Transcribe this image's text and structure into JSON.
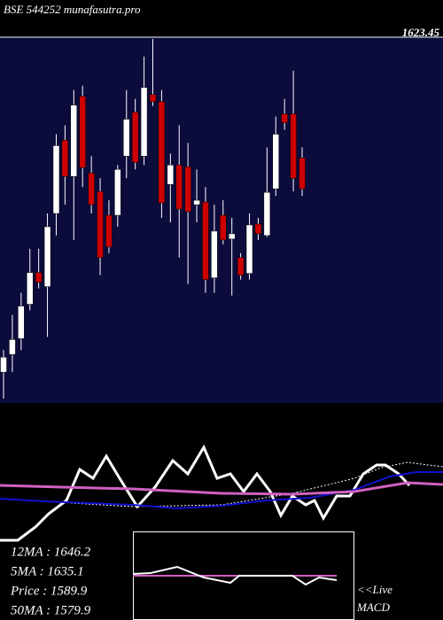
{
  "header": {
    "title": "BSE 544252 munafasutra.pro",
    "price_label": "1623.45"
  },
  "legend": [
    "12MA : 1646.2",
    "5MA : 1635.1",
    "Price   : 1589.9",
    "50MA : 1579.9"
  ],
  "macd_labels": [
    "<<Live",
    "MACD"
  ],
  "chart_data": [
    {
      "type": "candlestick",
      "ylim": [
        1585,
        2000
      ],
      "up_color": "#ffffff",
      "down_color": "#cc0000",
      "wick_color": "#ffffff",
      "open": [
        1620,
        1640,
        1658,
        1697,
        1733,
        1717,
        1800,
        1883,
        1842,
        1933,
        1846,
        1825,
        1798,
        1798,
        1865,
        1915,
        1865,
        1935,
        1927,
        1833,
        1855,
        1853,
        1810,
        1813,
        1727,
        1798,
        1771,
        1750,
        1732,
        1788,
        1775,
        1828,
        1913,
        1913,
        1863
      ],
      "high": [
        1645,
        1685,
        1710,
        1760,
        1760,
        1800,
        1890,
        1900,
        1940,
        1945,
        1865,
        1840,
        1815,
        1855,
        1940,
        1930,
        1978,
        1998,
        1940,
        1868,
        1900,
        1880,
        1850,
        1830,
        1810,
        1815,
        1795,
        1755,
        1800,
        1795,
        1875,
        1910,
        1930,
        1962,
        1875
      ],
      "low": [
        1590,
        1620,
        1645,
        1690,
        1715,
        1660,
        1775,
        1810,
        1770,
        1830,
        1800,
        1730,
        1755,
        1785,
        1840,
        1850,
        1855,
        1922,
        1795,
        1790,
        1750,
        1720,
        1790,
        1710,
        1710,
        1765,
        1707,
        1725,
        1725,
        1770,
        1773,
        1820,
        1895,
        1825,
        1820
      ],
      "close": [
        1637,
        1657,
        1695,
        1733,
        1722,
        1785,
        1877,
        1842,
        1923,
        1852,
        1810,
        1750,
        1762,
        1850,
        1907,
        1858,
        1943,
        1927,
        1812,
        1855,
        1805,
        1802,
        1815,
        1725,
        1780,
        1770,
        1777,
        1730,
        1787,
        1777,
        1824,
        1890,
        1903,
        1840,
        1828
      ]
    },
    {
      "type": "line",
      "xlim": [
        0,
        500
      ],
      "ylim": [
        0,
        160
      ],
      "series": [
        {
          "color": "#ffffff",
          "width": 3,
          "dash": "none",
          "x": [
            0,
            20,
            40,
            55,
            75,
            90,
            105,
            120,
            135,
            155,
            175,
            195,
            212,
            230,
            245,
            260,
            275,
            290,
            305,
            317,
            330,
            345,
            355,
            365,
            380,
            395,
            410,
            425,
            435,
            450,
            462
          ],
          "values": [
            10,
            10,
            25,
            40,
            55,
            90,
            80,
            105,
            80,
            48,
            70,
            100,
            85,
            115,
            80,
            85,
            65,
            85,
            65,
            38,
            60,
            50,
            55,
            35,
            60,
            60,
            85,
            95,
            95,
            85,
            72
          ]
        },
        {
          "color": "#ffffff",
          "width": 1,
          "dash": "2,2",
          "x": [
            80,
            150,
            250,
            330,
            400,
            430,
            460,
            500
          ],
          "values": [
            52,
            48,
            50,
            63,
            80,
            92,
            98,
            93
          ]
        },
        {
          "color": "#1010d0",
          "width": 2,
          "dash": "none",
          "x": [
            0,
            50,
            100,
            150,
            200,
            250,
            300,
            350,
            400,
            440,
            470,
            500
          ],
          "values": [
            57,
            54,
            52,
            50,
            46,
            49,
            55,
            58,
            67,
            82,
            87,
            87
          ]
        },
        {
          "color": "#d060c0",
          "width": 3,
          "dash": "none",
          "x": [
            0,
            70,
            150,
            250,
            330,
            400,
            460,
            500
          ],
          "values": [
            72,
            70,
            68,
            63,
            62,
            65,
            75,
            73
          ]
        }
      ]
    },
    {
      "type": "line",
      "xlim": [
        0,
        500
      ],
      "ylim": [
        -50,
        50
      ],
      "series": [
        {
          "color": "#d060c0",
          "width": 2,
          "dash": "none",
          "x": [
            150,
            380
          ],
          "values": [
            0,
            0
          ]
        },
        {
          "color": "#ffffff",
          "width": 2,
          "dash": "none",
          "x": [
            150,
            170,
            200,
            230,
            260,
            270,
            300,
            330,
            345,
            360,
            380
          ],
          "values": [
            2,
            3,
            10,
            -2,
            -8,
            0,
            0,
            0,
            -10,
            -2,
            -5
          ]
        }
      ]
    }
  ]
}
